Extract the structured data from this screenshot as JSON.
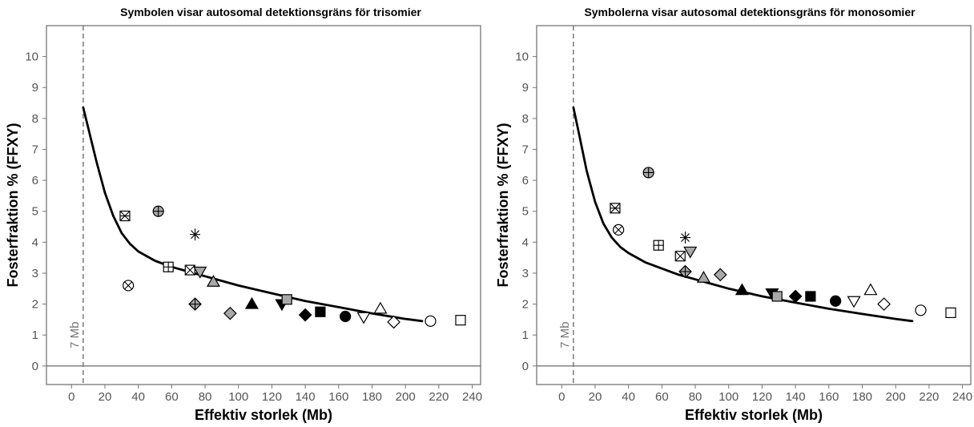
{
  "chart_data": [
    {
      "type": "scatter",
      "title": "Symbolen visar autosomal detektionsgräns för trisomier",
      "xlabel": "Effektiv storlek (Mb)",
      "ylabel": "Fosterfraktion % (FFXY)",
      "xlim": [
        -15,
        245
      ],
      "ylim": [
        -0.6,
        11
      ],
      "xticks": [
        "0",
        "20",
        "40",
        "60",
        "80",
        "100",
        "120",
        "140",
        "160",
        "180",
        "200",
        "220",
        "240"
      ],
      "yticks": [
        "0",
        "1",
        "2",
        "3",
        "4",
        "5",
        "6",
        "7",
        "8",
        "9",
        "10"
      ],
      "grid": false,
      "reference_line": {
        "x": 7,
        "label": "7 Mb"
      },
      "curve": [
        [
          7,
          8.35
        ],
        [
          10,
          7.7
        ],
        [
          15,
          6.6
        ],
        [
          20,
          5.6
        ],
        [
          25,
          4.85
        ],
        [
          30,
          4.3
        ],
        [
          35,
          3.95
        ],
        [
          40,
          3.7
        ],
        [
          50,
          3.4
        ],
        [
          60,
          3.2
        ],
        [
          70,
          3.05
        ],
        [
          80,
          2.9
        ],
        [
          90,
          2.75
        ],
        [
          100,
          2.6
        ],
        [
          120,
          2.35
        ],
        [
          140,
          2.1
        ],
        [
          160,
          1.9
        ],
        [
          180,
          1.7
        ],
        [
          200,
          1.52
        ],
        [
          210,
          1.45
        ]
      ],
      "points": [
        {
          "x": 32,
          "y": 4.85,
          "marker": "square-cross"
        },
        {
          "x": 34,
          "y": 2.6,
          "marker": "circle-x"
        },
        {
          "x": 52,
          "y": 5.0,
          "marker": "circle-dot"
        },
        {
          "x": 58,
          "y": 3.2,
          "marker": "square-plus"
        },
        {
          "x": 71,
          "y": 3.1,
          "marker": "square-x"
        },
        {
          "x": 74,
          "y": 4.25,
          "marker": "asterisk"
        },
        {
          "x": 74,
          "y": 2.0,
          "marker": "diamond-plus"
        },
        {
          "x": 77,
          "y": 3.05,
          "marker": "triangle-down-gray"
        },
        {
          "x": 85,
          "y": 2.72,
          "marker": "triangle-gray"
        },
        {
          "x": 95,
          "y": 1.7,
          "marker": "diamond-gray"
        },
        {
          "x": 108,
          "y": 2.0,
          "marker": "triangle-black"
        },
        {
          "x": 126,
          "y": 2.0,
          "marker": "triangle-down-black"
        },
        {
          "x": 129,
          "y": 2.15,
          "marker": "square-gray"
        },
        {
          "x": 140,
          "y": 1.65,
          "marker": "diamond-black"
        },
        {
          "x": 149,
          "y": 1.75,
          "marker": "square-black"
        },
        {
          "x": 164,
          "y": 1.6,
          "marker": "circle-black"
        },
        {
          "x": 175,
          "y": 1.58,
          "marker": "triangle-down-open"
        },
        {
          "x": 185,
          "y": 1.85,
          "marker": "triangle-open"
        },
        {
          "x": 193,
          "y": 1.42,
          "marker": "diamond-open"
        },
        {
          "x": 215,
          "y": 1.45,
          "marker": "circle-open"
        },
        {
          "x": 233,
          "y": 1.48,
          "marker": "square-open"
        }
      ]
    },
    {
      "type": "scatter",
      "title": "Symbolerna visar autosomal detektionsgräns för monosomier",
      "xlabel": "Effektiv storlek (Mb)",
      "ylabel": "Fosterfraktion % (FFXY)",
      "xlim": [
        -15,
        245
      ],
      "ylim": [
        -0.6,
        11
      ],
      "xticks": [
        "0",
        "20",
        "40",
        "60",
        "80",
        "100",
        "120",
        "140",
        "160",
        "180",
        "200",
        "220",
        "240"
      ],
      "yticks": [
        "0",
        "1",
        "2",
        "3",
        "4",
        "5",
        "6",
        "7",
        "8",
        "9",
        "10"
      ],
      "grid": false,
      "reference_line": {
        "x": 7,
        "label": "7 Mb"
      },
      "curve": [
        [
          7,
          8.35
        ],
        [
          10,
          7.6
        ],
        [
          15,
          6.3
        ],
        [
          20,
          5.3
        ],
        [
          25,
          4.6
        ],
        [
          30,
          4.15
        ],
        [
          35,
          3.85
        ],
        [
          40,
          3.65
        ],
        [
          50,
          3.35
        ],
        [
          60,
          3.15
        ],
        [
          70,
          2.95
        ],
        [
          80,
          2.8
        ],
        [
          90,
          2.65
        ],
        [
          100,
          2.5
        ],
        [
          120,
          2.25
        ],
        [
          140,
          2.05
        ],
        [
          160,
          1.85
        ],
        [
          180,
          1.68
        ],
        [
          200,
          1.52
        ],
        [
          210,
          1.45
        ]
      ],
      "points": [
        {
          "x": 32,
          "y": 5.1,
          "marker": "square-cross"
        },
        {
          "x": 34,
          "y": 4.4,
          "marker": "circle-x"
        },
        {
          "x": 52,
          "y": 6.25,
          "marker": "circle-dot"
        },
        {
          "x": 58,
          "y": 3.9,
          "marker": "square-plus"
        },
        {
          "x": 71,
          "y": 3.55,
          "marker": "square-x"
        },
        {
          "x": 74,
          "y": 4.15,
          "marker": "asterisk"
        },
        {
          "x": 74,
          "y": 3.05,
          "marker": "diamond-plus"
        },
        {
          "x": 77,
          "y": 3.7,
          "marker": "triangle-down-gray"
        },
        {
          "x": 85,
          "y": 2.85,
          "marker": "triangle-gray"
        },
        {
          "x": 95,
          "y": 2.95,
          "marker": "diamond-gray"
        },
        {
          "x": 108,
          "y": 2.45,
          "marker": "triangle-black"
        },
        {
          "x": 126,
          "y": 2.35,
          "marker": "triangle-down-black"
        },
        {
          "x": 129,
          "y": 2.25,
          "marker": "square-gray"
        },
        {
          "x": 140,
          "y": 2.25,
          "marker": "diamond-black"
        },
        {
          "x": 149,
          "y": 2.25,
          "marker": "square-black"
        },
        {
          "x": 164,
          "y": 2.1,
          "marker": "circle-black"
        },
        {
          "x": 175,
          "y": 2.1,
          "marker": "triangle-down-open"
        },
        {
          "x": 185,
          "y": 2.45,
          "marker": "triangle-open"
        },
        {
          "x": 193,
          "y": 2.0,
          "marker": "diamond-open"
        },
        {
          "x": 215,
          "y": 1.8,
          "marker": "circle-open"
        },
        {
          "x": 233,
          "y": 1.72,
          "marker": "square-open"
        }
      ]
    }
  ],
  "colors": {
    "black": "#000000",
    "gray_fill": "#a8a8a8",
    "open_fill": "#ffffff",
    "axis": "#777777",
    "ref_line": "#777777"
  }
}
